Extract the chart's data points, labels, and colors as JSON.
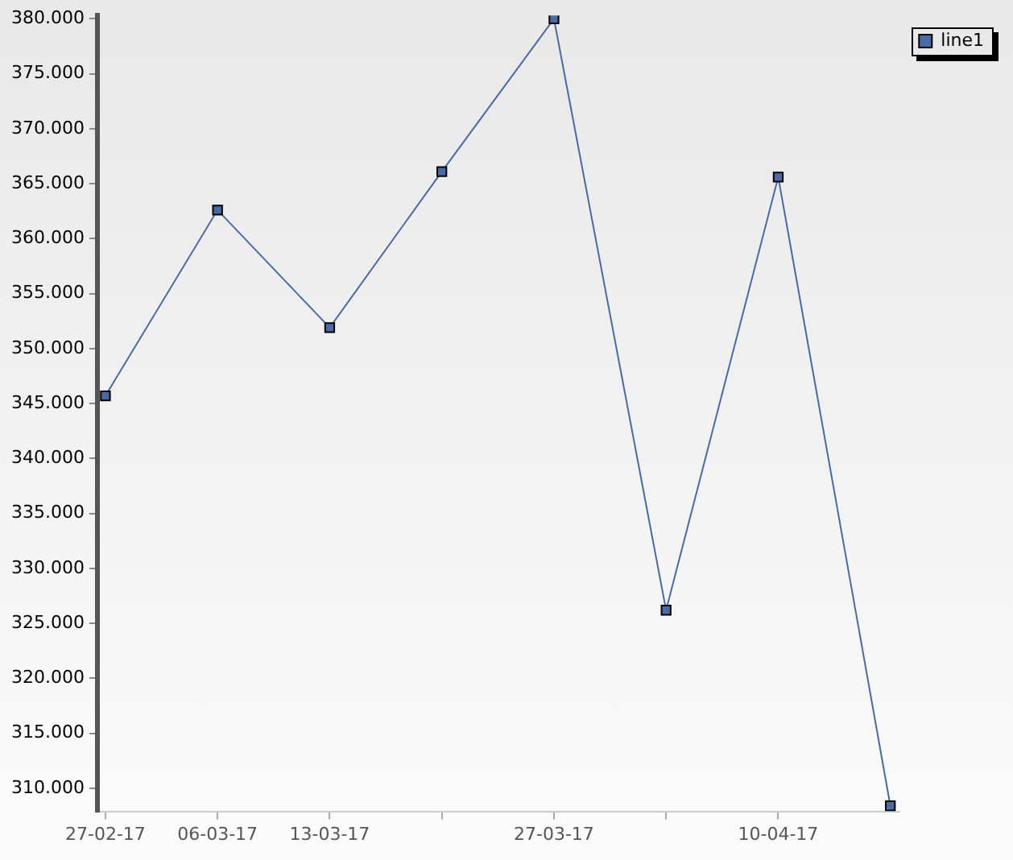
{
  "chart_data": {
    "type": "line",
    "x": [
      "--02-27",
      "--03-06",
      "--03-13",
      "--03-20",
      "--03-27",
      "--04-03",
      "--04-10",
      "--04-17"
    ],
    "series": [
      {
        "name": "line1",
        "color": "#4a6aa5",
        "values": [
          345700,
          362600,
          351900,
          366100,
          380000,
          326200,
          365600,
          308400
        ]
      }
    ],
    "xlim": [
      "--02-26T12:00",
      "--04-17T14:00"
    ],
    "xticks": [
      {
        "value": "--02-27",
        "label": "27-02-17"
      },
      {
        "value": "--03-06",
        "label": "06-03-17"
      },
      {
        "value": "--03-13",
        "label": "13-03-17"
      },
      {
        "value": "--03-20",
        "label": null
      },
      {
        "value": "--03-27",
        "label": "27-03-17"
      },
      {
        "value": "--04-03",
        "label": null
      },
      {
        "value": "--04-10",
        "label": "10-04-17"
      }
    ],
    "ylim": [
      307900,
      380300
    ],
    "yticks": [
      {
        "value": 310000,
        "label": "310.000"
      },
      {
        "value": 315000,
        "label": "315.000"
      },
      {
        "value": 320000,
        "label": "320.000"
      },
      {
        "value": 325000,
        "label": "325.000"
      },
      {
        "value": 330000,
        "label": "330.000"
      },
      {
        "value": 335000,
        "label": "335.000"
      },
      {
        "value": 340000,
        "label": "340.000"
      },
      {
        "value": 345000,
        "label": "345.000"
      },
      {
        "value": 350000,
        "label": "350.000"
      },
      {
        "value": 355000,
        "label": "355.000"
      },
      {
        "value": 360000,
        "label": "360.000"
      },
      {
        "value": 365000,
        "label": "365.000"
      },
      {
        "value": 370000,
        "label": "370.000"
      },
      {
        "value": 375000,
        "label": "375.000"
      },
      {
        "value": 380000,
        "label": "380.000"
      }
    ],
    "grid": false,
    "legend": "top right",
    "marker": "square",
    "line_style": "solid"
  }
}
